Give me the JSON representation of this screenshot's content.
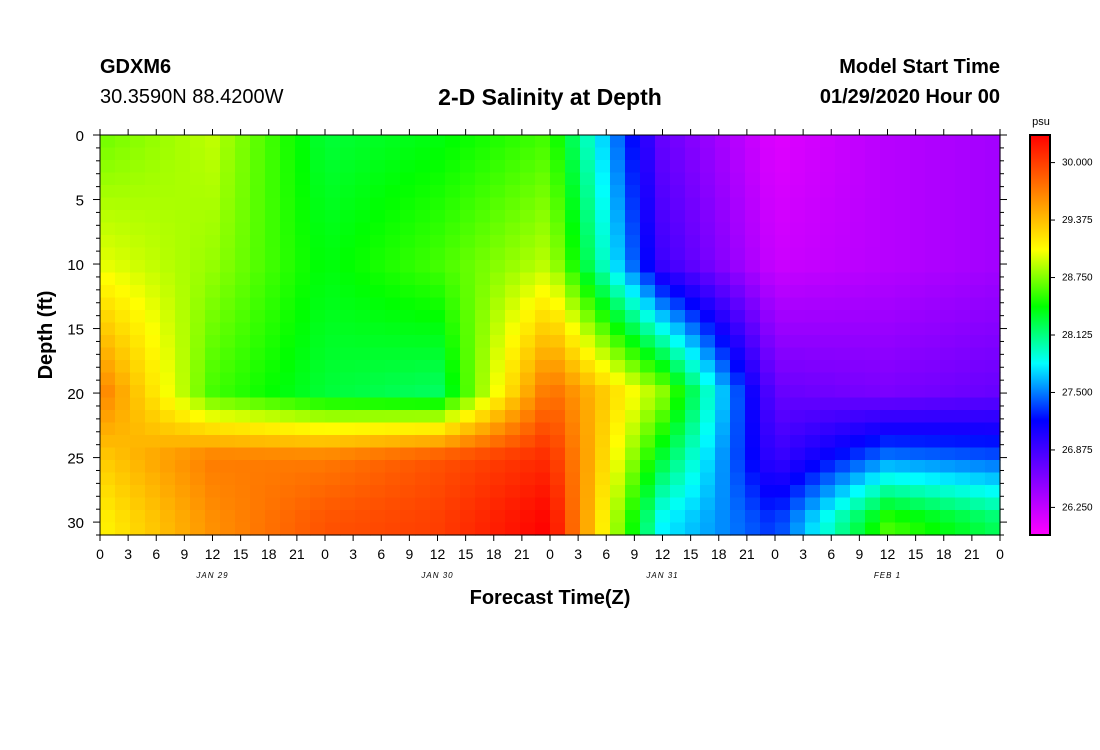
{
  "header": {
    "station": "GDXM6",
    "coords": "30.3590N 88.4200W",
    "title": "2-D Salinity at Depth",
    "start_label": "Model Start Time",
    "start_value": "01/29/2020 Hour 00"
  },
  "chart_data": {
    "type": "heatmap",
    "title": "2-D Salinity at Depth",
    "xlabel": "Forecast Time(Z)",
    "ylabel": "Depth (ft)",
    "x_hours": [
      0,
      12,
      24,
      36,
      48,
      60,
      72,
      84,
      96
    ],
    "depths_ft": [
      0,
      10,
      20,
      25,
      30
    ],
    "salinity_psu": [
      [
        28.7,
        28.9,
        28.3,
        28.4,
        28.6,
        26.7,
        26.1,
        26.3,
        26.4
      ],
      [
        29.0,
        28.8,
        28.4,
        28.6,
        28.9,
        26.9,
        26.2,
        26.3,
        26.4
      ],
      [
        29.7,
        28.6,
        28.3,
        28.2,
        29.8,
        28.8,
        26.7,
        26.6,
        26.7
      ],
      [
        29.3,
        29.7,
        29.7,
        29.9,
        30.1,
        28.3,
        26.9,
        27.5,
        27.4
      ],
      [
        29.1,
        29.6,
        29.9,
        30.0,
        30.3,
        27.8,
        27.3,
        28.6,
        28.2
      ]
    ],
    "x_tick_labels": [
      "0",
      "3",
      "6",
      "9",
      "12",
      "15",
      "18",
      "21",
      "0",
      "3",
      "6",
      "9",
      "12",
      "15",
      "18",
      "21",
      "0",
      "3",
      "6",
      "9",
      "12",
      "15",
      "18",
      "21",
      "0",
      "3",
      "6",
      "9",
      "12",
      "15",
      "18",
      "21",
      "0"
    ],
    "date_labels": [
      "JAN 29",
      "JAN 30",
      "JAN 31",
      "FEB 1"
    ],
    "y_ticks": [
      0,
      5,
      10,
      15,
      20,
      25,
      30
    ],
    "ylim": [
      0,
      31
    ],
    "colorbar": {
      "unit": "psu",
      "ticks": [
        "30.000",
        "29.375",
        "28.750",
        "28.125",
        "27.500",
        "26.875",
        "26.250"
      ],
      "range": [
        25.95,
        30.3
      ],
      "colors": [
        "#ff00ff",
        "#8000ff",
        "#0000ff",
        "#00ffff",
        "#00ff00",
        "#ffff00",
        "#ff8000",
        "#ff0000"
      ]
    },
    "grid": false
  }
}
